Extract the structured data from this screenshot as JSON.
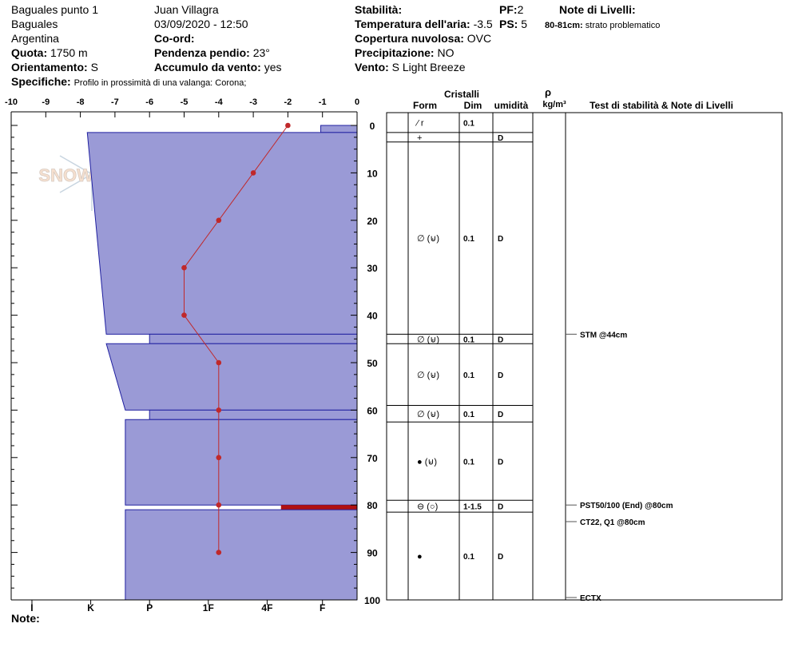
{
  "header": {
    "location_name": "Baguales punto 1",
    "region": "Baguales",
    "country": "Argentina",
    "observer": "Juan Villagra",
    "datetime": "03/09/2020 - 12:50",
    "coord_label": "Co-ord:",
    "elevation_label": "Quota:",
    "elevation_value": "1750 m",
    "aspect_label": "Orientamento:",
    "aspect_value": "S",
    "slope_label": "Pendenza pendio:",
    "slope_value": "23°",
    "wind_loading_label": "Accumulo da vento:",
    "wind_loading_value": "yes",
    "specifics_label": "Specifiche:",
    "specifics_value": "Profilo in prossimità di una valanga: Corona;",
    "stability_label": "Stabilità:",
    "air_temp_label": "Temperatura dell'aria:",
    "air_temp_value": "-3.5",
    "cloud_label": "Copertura nuvolosa:",
    "cloud_value": "OVC",
    "precip_label": "Precipitazione:",
    "precip_value": "NO",
    "wind_label": "Vento:",
    "wind_value": "S Light Breeze",
    "pf_label": "PF:",
    "pf_value": "2",
    "ps_label": "PS:",
    "ps_value": "5",
    "layer_notes_title": "Note di Livelli:",
    "layer_note_depth": "80-81cm:",
    "layer_note_text": "strato problematico",
    "note_label": "Note:",
    "watermark": "SNOWPILOT"
  },
  "columns": {
    "crystals": "Cristalli",
    "form": "Form",
    "size": "Dim",
    "moisture": "umidità",
    "rho": "ρ",
    "density_unit": "kg/m³",
    "tests_title": "Test di stabilità & Note di Livelli"
  },
  "colors": {
    "hardness_fill": "#9a9ad6",
    "hardness_stroke": "#2020a0",
    "temp_line": "#c0282a",
    "weak_layer": "#b01010"
  },
  "chart_data": {
    "type": "line",
    "title": "",
    "temp_axis": {
      "ticks": [
        "-10",
        "-9",
        "-8",
        "-7",
        "-6",
        "-5",
        "-4",
        "-3",
        "-2",
        "-1",
        "0"
      ],
      "range": [
        -10,
        0
      ]
    },
    "depth_axis": {
      "ticks": [
        "0",
        "10",
        "20",
        "30",
        "40",
        "50",
        "60",
        "70",
        "80",
        "90",
        "100"
      ],
      "range": [
        0,
        100
      ]
    },
    "hardness_labels": [
      "I",
      "K",
      "P",
      "1F",
      "4F",
      "F"
    ],
    "hardness_scale": {
      "I": -9.4,
      "K": -7.7,
      "P": -6.0,
      "1F": -4.3,
      "4F": -2.6,
      "F": -1.0
    },
    "temperature_profile": [
      {
        "depth": 0,
        "temp": -2.0
      },
      {
        "depth": 10,
        "temp": -3.0
      },
      {
        "depth": 20,
        "temp": -4.0
      },
      {
        "depth": 30,
        "temp": -5.0
      },
      {
        "depth": 40,
        "temp": -5.0
      },
      {
        "depth": 50,
        "temp": -4.0
      },
      {
        "depth": 60,
        "temp": -4.0
      },
      {
        "depth": 70,
        "temp": -4.0
      },
      {
        "depth": 80,
        "temp": -4.0
      },
      {
        "depth": 90,
        "temp": -4.0
      }
    ],
    "hardness_layers": [
      {
        "top": 0,
        "bottom": 1.5,
        "hardness_top": -1.05,
        "hardness_bottom": -1.05
      },
      {
        "top": 1.5,
        "bottom": 44,
        "hardness_top": -7.8,
        "hardness_bottom": -7.25
      },
      {
        "top": 44,
        "bottom": 46,
        "hardness_top": -6.0,
        "hardness_bottom": -6.0
      },
      {
        "top": 46,
        "bottom": 60,
        "hardness_top": -7.25,
        "hardness_bottom": -6.7
      },
      {
        "top": 60,
        "bottom": 62,
        "hardness_top": -6.0,
        "hardness_bottom": -6.0
      },
      {
        "top": 62,
        "bottom": 80,
        "hardness_top": -6.7,
        "hardness_bottom": -6.7
      },
      {
        "top": 80,
        "bottom": 81,
        "hardness_top": -2.2,
        "hardness_bottom": -2.2,
        "weak": true
      },
      {
        "top": 81,
        "bottom": 100,
        "hardness_top": -6.7,
        "hardness_bottom": -6.7
      }
    ],
    "layer_rows": [
      {
        "top": 0,
        "bottom": 1.5,
        "form": "⁄ r",
        "size": "0.1",
        "moisture": ""
      },
      {
        "top": 1.5,
        "bottom": 3.5,
        "form": "+",
        "size": "",
        "moisture": "D"
      },
      {
        "top": 3.5,
        "bottom": 44,
        "form": "∅ (⊌)",
        "size": "0.1",
        "moisture": "D"
      },
      {
        "top": 44,
        "bottom": 46,
        "form": "∅ (⊌)",
        "size": "0.1",
        "moisture": "D"
      },
      {
        "top": 46,
        "bottom": 59,
        "form": "∅ (⊌)",
        "size": "0.1",
        "moisture": "D"
      },
      {
        "top": 59,
        "bottom": 62.5,
        "form": "∅ (⊌)",
        "size": "0.1",
        "moisture": "D"
      },
      {
        "top": 62.5,
        "bottom": 79,
        "form": "● (⊌)",
        "size": "0.1",
        "moisture": "D"
      },
      {
        "top": 79,
        "bottom": 81.5,
        "form": "⊖ (○)",
        "size": "1-1.5",
        "moisture": "D"
      },
      {
        "top": 81.5,
        "bottom": 100,
        "form": "●",
        "size": "0.1",
        "moisture": "D"
      }
    ],
    "stability_tests": [
      {
        "depth": 44,
        "label": "STM @44cm"
      },
      {
        "depth": 80,
        "label": "PST50/100 (End) @80cm"
      },
      {
        "depth": 83.5,
        "label": "CT22, Q1 @80cm"
      },
      {
        "depth": 99.5,
        "label": "ECTX"
      }
    ]
  }
}
